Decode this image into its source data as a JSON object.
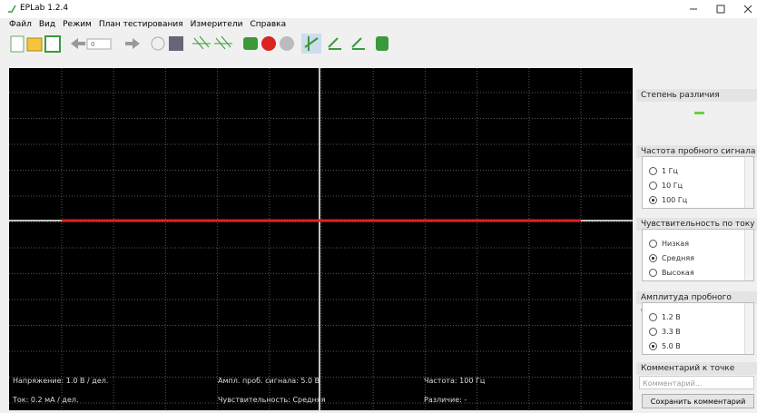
{
  "window": {
    "title": "EPLab 1.2.4"
  },
  "menu": [
    "Файл",
    "Вид",
    "Режим",
    "План тестирования",
    "Измерители",
    "Справка"
  ],
  "toolbar": {
    "point_number": "0"
  },
  "plot": {
    "info": [
      [
        "Напряжение: 1.0 В / дел.",
        "Ампл. проб. сигнала: 5.0 В",
        "Частота: 100 Гц"
      ],
      [
        "Ток: 0.2 мА / дел.",
        "Чувствительность: Средняя",
        "Различие: -"
      ]
    ]
  },
  "panels": {
    "difference": {
      "title": "Степень различия"
    },
    "frequency": {
      "title": "Частота пробного сигнала",
      "options": [
        "1 Гц",
        "10 Гц",
        "100 Гц"
      ],
      "selected": 2
    },
    "sensitivity": {
      "title": "Чувствительность по току",
      "options": [
        "Низкая",
        "Средняя",
        "Высокая"
      ],
      "selected": 1
    },
    "amplitude": {
      "title": "Амплитуда пробного сигнала",
      "options": [
        "1.2 В",
        "3.3 В",
        "5.0 В"
      ],
      "selected": 2
    },
    "comment": {
      "title": "Комментарий к точке",
      "placeholder": "Комментарий...",
      "button": "Сохранить комментарий"
    }
  }
}
